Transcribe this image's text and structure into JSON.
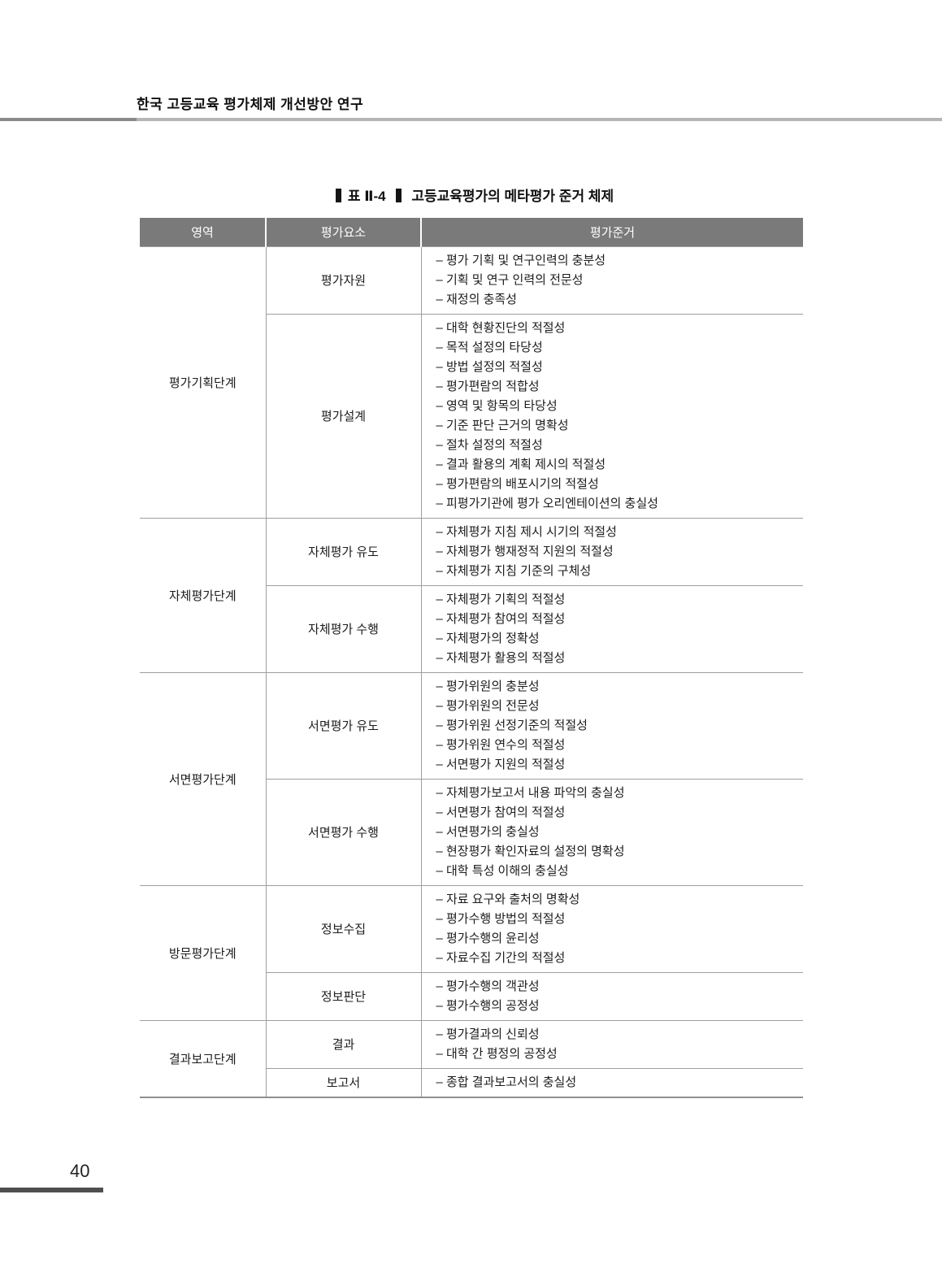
{
  "page": {
    "running_header": "한국 고등교육 평가체제 개선방안 연구",
    "page_number": "40"
  },
  "table_title": {
    "label": "표 Ⅱ-4",
    "text": "고등교육평가의 메타평가 준거 체제"
  },
  "table": {
    "columns": [
      "영역",
      "평가요소",
      "평가준거"
    ],
    "sections": [
      {
        "area": "평가기획단계",
        "rows": [
          {
            "element": "평가자원",
            "criteria": [
              "– 평가 기획 및 연구인력의 충분성",
              "– 기획 및 연구 인력의 전문성",
              "– 재정의 충족성"
            ]
          },
          {
            "element": "평가설계",
            "criteria": [
              "– 대학 현황진단의 적절성",
              "– 목적 설정의 타당성",
              "– 방법 설정의 적절성",
              "– 평가편람의 적합성",
              "– 영역 및 항목의 타당성",
              "– 기준 판단 근거의 명확성",
              "– 절차 설정의 적절성",
              "– 결과 활용의 계획 제시의 적절성",
              "– 평가편람의 배포시기의 적절성",
              "– 피평가기관에 평가 오리엔테이션의 충실성"
            ]
          }
        ]
      },
      {
        "area": "자체평가단계",
        "rows": [
          {
            "element": "자체평가 유도",
            "criteria": [
              "– 자체평가 지침 제시 시기의 적절성",
              "– 자체평가 행재정적 지원의 적절성",
              "– 자체평가 지침 기준의 구체성"
            ]
          },
          {
            "element": "자체평가 수행",
            "criteria": [
              "– 자체평가 기획의 적절성",
              "– 자체평가 참여의 적절성",
              "– 자체평가의 정확성",
              "– 자체평가 활용의 적절성"
            ]
          }
        ]
      },
      {
        "area": "서면평가단계",
        "rows": [
          {
            "element": "서면평가 유도",
            "criteria": [
              "– 평가위원의 충분성",
              "– 평가위원의 전문성",
              "– 평가위원 선정기준의 적절성",
              "– 평가위원 연수의 적절성",
              "– 서면평가 지원의 적절성"
            ]
          },
          {
            "element": "서면평가 수행",
            "criteria": [
              "– 자체평가보고서 내용 파악의 충실성",
              "– 서면평가 참여의 적절성",
              "– 서면평가의 충실성",
              "– 현장평가 확인자료의 설정의 명확성",
              "– 대학 특성 이해의 충실성"
            ]
          }
        ]
      },
      {
        "area": "방문평가단계",
        "rows": [
          {
            "element": "정보수집",
            "criteria": [
              "– 자료 요구와 출처의 명확성",
              "– 평가수행 방법의 적절성",
              "– 평가수행의 윤리성",
              "– 자료수집 기간의 적절성"
            ]
          },
          {
            "element": "정보판단",
            "criteria": [
              "– 평가수행의 객관성",
              "– 평가수행의 공정성"
            ]
          }
        ]
      },
      {
        "area": "결과보고단계",
        "rows": [
          {
            "element": "결과",
            "criteria": [
              "– 평가결과의 신뢰성",
              "– 대학 간 평정의 공정성"
            ]
          },
          {
            "element": "보고서",
            "criteria": [
              "– 종합 결과보고서의 충실성"
            ]
          }
        ]
      }
    ]
  },
  "colors": {
    "header_background": "#7a7a7a",
    "header_text": "#ffffff",
    "border": "#9e9e9e",
    "rule_dark": "#8a8a8a",
    "rule_light": "#b5b5b5",
    "footer_bar": "#4f4f4f"
  }
}
